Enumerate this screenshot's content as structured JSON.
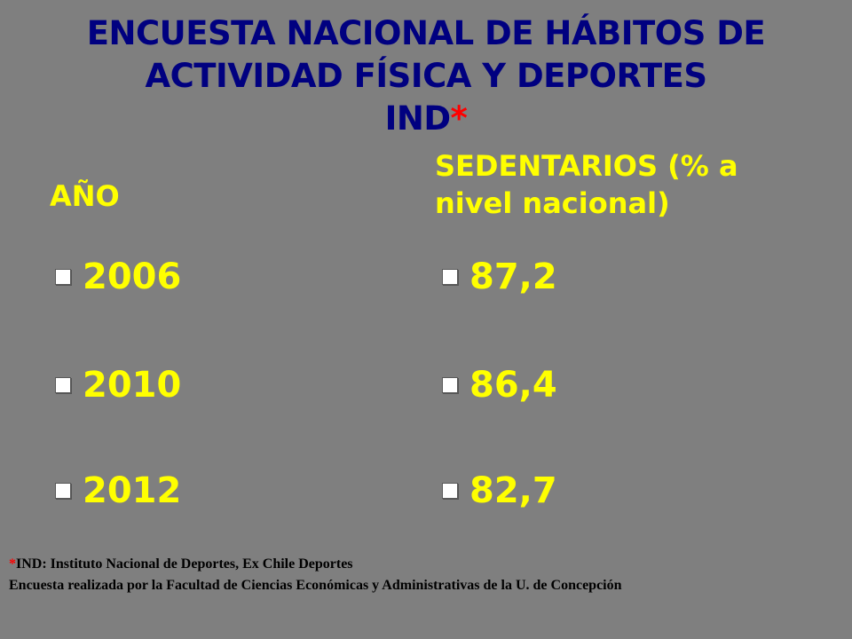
{
  "title": {
    "line1": "ENCUESTA NACIONAL DE HÁBITOS DE",
    "line2": "ACTIVIDAD FÍSICA Y DEPORTES",
    "line3": "IND",
    "asterisk": "*"
  },
  "headers": {
    "year": "AÑO",
    "sedentary": "SEDENTARIOS  (% a nivel nacional)"
  },
  "rows": [
    {
      "year": "2006",
      "value": "87,2"
    },
    {
      "year": "2010",
      "value": "86,4"
    },
    {
      "year": "2012",
      "value": "82,7"
    }
  ],
  "footnote": {
    "asterisk": "*",
    "line1": "IND: Instituto Nacional de Deportes, Ex Chile Deportes",
    "line2": "Encuesta realizada por la Facultad de Ciencias Económicas y Administrativas de la U. de Concepción"
  },
  "colors": {
    "background": "#7f7f7f",
    "title": "#000080",
    "text": "#ffff00",
    "asterisk": "#ff0000"
  }
}
